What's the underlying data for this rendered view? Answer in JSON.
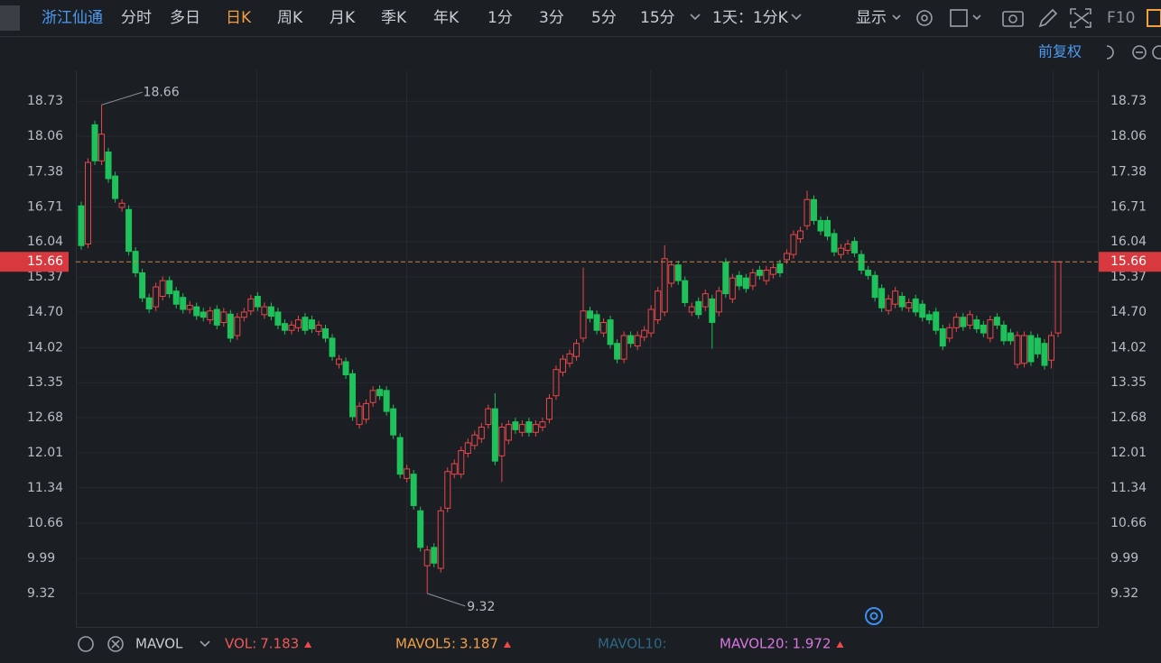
{
  "toolbar": {
    "stock_name": "浙江仙通",
    "tabs": [
      "分时",
      "多日",
      "日K",
      "周K",
      "月K",
      "季K",
      "年K",
      "1分",
      "3分",
      "5分",
      "15分"
    ],
    "active_tab": 2,
    "period": "1天：1分K",
    "display": "显示",
    "f10": "F10"
  },
  "adjust": "前复权",
  "chart_data": {
    "type": "candlestick",
    "open": [
      16.73,
      16.0,
      18.28,
      17.59,
      17.76,
      17.3,
      16.7,
      16.66,
      15.86,
      15.45,
      14.97,
      14.8,
      15.0,
      15.3,
      15.1,
      14.98,
      14.75,
      14.8,
      14.7,
      14.55,
      14.75,
      14.5,
      14.66,
      14.25,
      14.6,
      14.72,
      15.0,
      14.65,
      14.8,
      14.7,
      14.48,
      14.35,
      14.4,
      14.6,
      14.55,
      14.33,
      14.38,
      14.2,
      13.7,
      13.75,
      13.52,
      12.55,
      12.65,
      12.97,
      13.22,
      13.2,
      12.85,
      12.3,
      11.52,
      11.6,
      10.9,
      9.85,
      10.2,
      9.8,
      10.95,
      11.6,
      11.6,
      12.0,
      12.15,
      12.28,
      12.55,
      12.85,
      11.95,
      12.25,
      12.6,
      12.4,
      12.6,
      12.4,
      12.5,
      12.65,
      13.1,
      13.55,
      13.72,
      13.85,
      14.2,
      14.72,
      14.65,
      14.3,
      14.55,
      14.1,
      13.8,
      14.25,
      14.05,
      14.22,
      14.3,
      14.55,
      14.7,
      15.25,
      15.6,
      15.3,
      14.7,
      14.9,
      14.8,
      14.95,
      14.7,
      15.65,
      14.95,
      15.4,
      15.35,
      15.2,
      15.5,
      15.3,
      15.42,
      15.62,
      15.7,
      15.8,
      16.1,
      16.35,
      16.85,
      16.45,
      16.45,
      16.2,
      15.8,
      15.88,
      16.05,
      15.8,
      15.5,
      15.4,
      15.15,
      14.73,
      14.85,
      15.0,
      14.78,
      14.95,
      14.85,
      14.65,
      14.7,
      14.38,
      14.2,
      14.4,
      14.6,
      14.45,
      14.55,
      14.45,
      14.2,
      14.6,
      14.45,
      14.3,
      13.7,
      13.72,
      14.25,
      14.2,
      14.1,
      13.78,
      14.3
    ],
    "high": [
      16.81,
      17.64,
      18.36,
      18.66,
      17.84,
      17.38,
      16.86,
      16.74,
      15.94,
      15.53,
      15.05,
      15.26,
      15.38,
      15.38,
      15.18,
      15.06,
      14.91,
      14.88,
      14.78,
      14.8,
      14.83,
      14.78,
      14.74,
      14.68,
      14.78,
      15.03,
      15.08,
      14.88,
      14.88,
      14.78,
      14.56,
      14.53,
      14.63,
      14.68,
      14.63,
      14.53,
      14.46,
      14.28,
      13.88,
      13.83,
      13.6,
      12.98,
      13.03,
      13.28,
      13.3,
      13.28,
      12.93,
      12.38,
      11.78,
      11.68,
      10.98,
      10.23,
      10.28,
      10.98,
      11.73,
      11.88,
      12.13,
      12.28,
      12.43,
      12.58,
      12.93,
      13.15,
      12.58,
      12.63,
      12.68,
      12.63,
      12.68,
      12.63,
      12.68,
      13.13,
      13.68,
      13.88,
      13.98,
      14.18,
      15.55,
      14.8,
      14.73,
      14.58,
      14.63,
      14.18,
      14.33,
      14.33,
      14.33,
      14.43,
      14.83,
      15.18,
      15.98,
      15.68,
      15.68,
      15.38,
      14.88,
      14.98,
      15.13,
      15.03,
      15.18,
      15.73,
      15.43,
      15.48,
      15.43,
      15.53,
      15.58,
      15.58,
      15.63,
      15.7,
      15.9,
      16.26,
      16.33,
      17.02,
      16.93,
      16.53,
      16.53,
      16.28,
      16.0,
      16.08,
      16.13,
      15.88,
      15.58,
      15.48,
      15.23,
      15.03,
      15.18,
      15.08,
      14.96,
      15.03,
      14.93,
      14.73,
      14.78,
      14.46,
      14.48,
      14.68,
      14.68,
      14.73,
      14.63,
      14.53,
      14.63,
      14.68,
      14.53,
      14.38,
      14.33,
      14.33,
      14.33,
      14.28,
      14.18,
      14.33,
      15.66
    ],
    "low": [
      15.89,
      15.92,
      17.51,
      17.51,
      17.17,
      16.79,
      16.62,
      15.78,
      15.37,
      14.89,
      14.68,
      14.72,
      14.92,
      14.97,
      14.77,
      14.67,
      14.67,
      14.55,
      14.52,
      14.47,
      14.37,
      14.42,
      14.12,
      14.17,
      14.52,
      14.64,
      14.72,
      14.57,
      14.54,
      14.37,
      14.27,
      14.27,
      14.32,
      14.27,
      14.3,
      14.25,
      14.12,
      13.77,
      13.62,
      13.42,
      12.62,
      12.47,
      12.57,
      12.89,
      13.02,
      12.72,
      12.27,
      11.52,
      11.44,
      10.92,
      10.12,
      9.32,
      9.82,
      9.72,
      10.87,
      11.52,
      11.52,
      11.92,
      12.07,
      12.2,
      12.47,
      11.77,
      11.45,
      12.17,
      12.37,
      12.32,
      12.32,
      12.32,
      12.42,
      12.57,
      13.02,
      13.47,
      13.64,
      13.77,
      14.12,
      14.5,
      14.27,
      14.22,
      14.0,
      13.72,
      13.72,
      14.02,
      13.97,
      14.14,
      14.22,
      14.47,
      14.62,
      15.17,
      15.22,
      14.8,
      14.62,
      14.57,
      14.72,
      14.0,
      14.62,
      14.97,
      14.87,
      15.12,
      15.07,
      15.12,
      15.32,
      15.22,
      15.34,
      15.37,
      15.62,
      15.72,
      16.02,
      16.27,
      16.37,
      16.17,
      16.07,
      15.77,
      15.72,
      15.8,
      15.75,
      15.42,
      15.32,
      14.9,
      14.7,
      14.65,
      14.77,
      14.72,
      14.7,
      14.62,
      14.52,
      14.47,
      14.27,
      13.97,
      14.12,
      14.32,
      14.34,
      14.37,
      14.3,
      14.22,
      14.12,
      14.37,
      14.07,
      14.07,
      13.62,
      13.64,
      13.67,
      13.82,
      13.6,
      13.62,
      14.22
    ],
    "close": [
      15.97,
      17.56,
      17.59,
      18.1,
      17.25,
      16.87,
      16.78,
      15.86,
      15.45,
      14.97,
      14.76,
      15.18,
      15.3,
      15.05,
      14.85,
      14.75,
      14.83,
      14.63,
      14.6,
      14.72,
      14.45,
      14.7,
      14.2,
      14.6,
      14.7,
      14.95,
      14.8,
      14.8,
      14.62,
      14.45,
      14.35,
      14.45,
      14.55,
      14.35,
      14.38,
      14.45,
      14.2,
      13.85,
      13.8,
      13.5,
      12.7,
      12.9,
      12.95,
      13.2,
      13.1,
      12.8,
      12.35,
      11.6,
      11.7,
      11.0,
      10.2,
      10.15,
      9.9,
      10.9,
      11.65,
      11.8,
      12.05,
      12.2,
      12.35,
      12.5,
      12.85,
      11.85,
      12.5,
      12.55,
      12.45,
      12.55,
      12.4,
      12.55,
      12.6,
      13.05,
      13.6,
      13.8,
      13.9,
      14.1,
      14.72,
      14.58,
      14.35,
      14.5,
      14.08,
      13.8,
      14.25,
      14.1,
      14.25,
      14.35,
      14.75,
      15.1,
      15.72,
      15.6,
      15.3,
      14.88,
      14.8,
      14.65,
      15.05,
      14.5,
      15.1,
      15.05,
      15.35,
      15.2,
      15.15,
      15.45,
      15.4,
      15.5,
      15.55,
      15.45,
      15.82,
      16.18,
      16.25,
      16.85,
      16.45,
      16.25,
      16.15,
      15.85,
      15.92,
      16.0,
      15.83,
      15.5,
      15.4,
      14.98,
      14.78,
      14.95,
      15.1,
      14.8,
      14.88,
      14.7,
      14.6,
      14.55,
      14.35,
      14.05,
      14.4,
      14.6,
      14.42,
      14.65,
      14.38,
      14.3,
      14.55,
      14.45,
      14.15,
      14.15,
      14.25,
      14.25,
      13.75,
      13.9,
      13.68,
      14.25,
      15.66
    ],
    "ylim": [
      8.68,
      19.32
    ],
    "yticks": [
      9.32,
      9.99,
      10.66,
      11.34,
      12.01,
      12.68,
      13.35,
      14.02,
      {
        "value": 14.7,
        "label": "14.70"
      },
      15.37,
      16.04,
      16.71,
      17.38,
      18.06,
      18.73
    ],
    "grid": true,
    "up_color": "#e8474b",
    "down_color": "#1fc15a"
  },
  "indicator": {
    "name": "MAVOL",
    "items": [
      {
        "label": "VOL:",
        "value": 7.183,
        "color": "#ec5a5a"
      },
      {
        "label": "MAVOL5:",
        "value": 3.187,
        "color": "#f0a04a"
      },
      {
        "label": "MAVOL10:",
        "color": "#2c6884"
      },
      {
        "label": "MAVOL20:",
        "value": 1.972,
        "color": "#d976e0"
      }
    ]
  }
}
